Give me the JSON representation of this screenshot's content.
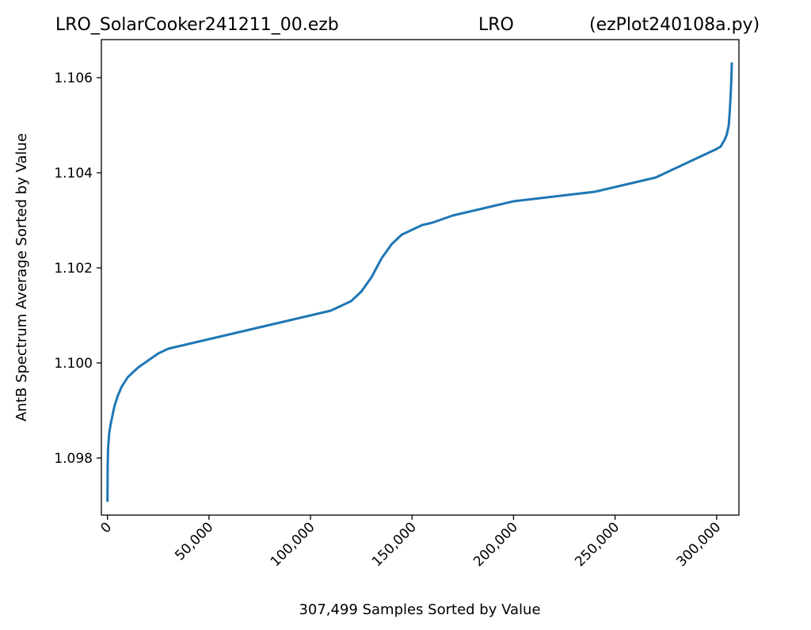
{
  "chart_data": {
    "type": "line",
    "title_left": "LRO_SolarCooker241211_00.ezb",
    "title_center": "LRO",
    "title_right": "(ezPlot240108a.py)",
    "xlabel": "307,499 Samples Sorted by Value",
    "ylabel": "AntB Spectrum Average Sorted by Value",
    "xlim": [
      -3000,
      311000
    ],
    "ylim": [
      1.0968,
      1.1068
    ],
    "x_ticks": [
      0,
      50000,
      100000,
      150000,
      200000,
      250000,
      300000
    ],
    "x_tick_labels": [
      "0",
      "50,000",
      "100,000",
      "150,000",
      "200,000",
      "250,000",
      "300,000"
    ],
    "y_ticks": [
      1.098,
      1.1,
      1.102,
      1.104,
      1.106
    ],
    "y_tick_labels": [
      "1.098",
      "1.100",
      "1.102",
      "1.104",
      "1.106"
    ],
    "grid": false,
    "line_color": "#1f77b4",
    "series": [
      {
        "x": [
          0,
          100,
          300,
          800,
          1500,
          2500,
          3500,
          5000,
          7000,
          10000,
          15000,
          20000,
          25000,
          30000,
          40000,
          50000,
          60000,
          70000,
          80000,
          90000,
          100000,
          110000,
          120000,
          125000,
          130000,
          135000,
          140000,
          145000,
          150000,
          155000,
          160000,
          170000,
          180000,
          190000,
          200000,
          220000,
          240000,
          260000,
          270000,
          280000,
          290000,
          295000,
          300000,
          302000,
          304000,
          305000,
          306000,
          306500,
          307000,
          307300,
          307499
        ],
        "y": [
          1.0971,
          1.0978,
          1.0982,
          1.0985,
          1.0987,
          1.0989,
          1.0991,
          1.0993,
          1.0995,
          1.0997,
          1.0999,
          1.10005,
          1.1002,
          1.1003,
          1.1004,
          1.1005,
          1.1006,
          1.1007,
          1.1008,
          1.1009,
          1.101,
          1.1011,
          1.1013,
          1.1015,
          1.1018,
          1.1022,
          1.1025,
          1.1027,
          1.1028,
          1.1029,
          1.10295,
          1.1031,
          1.1032,
          1.1033,
          1.1034,
          1.1035,
          1.1036,
          1.1038,
          1.1039,
          1.1041,
          1.1043,
          1.1044,
          1.1045,
          1.10455,
          1.1047,
          1.1048,
          1.105,
          1.1053,
          1.1057,
          1.106,
          1.1063
        ]
      }
    ]
  }
}
